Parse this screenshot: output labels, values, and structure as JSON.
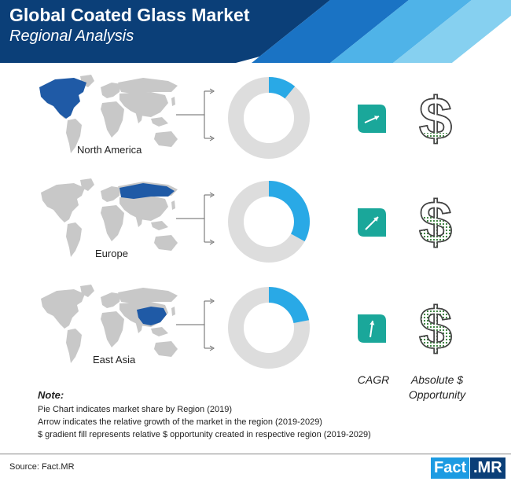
{
  "header": {
    "title": "Global Coated Glass Market",
    "subtitle": "Regional Analysis"
  },
  "colors": {
    "header_dark": "#0b3f78",
    "header_mid": "#1a73c4",
    "header_light": "#4fb3e8",
    "header_pale": "#86d0f0",
    "highlight_region": "#1f5aa6",
    "map_gray": "#c8c8c8",
    "donut_track": "#dddddd",
    "donut_share": "#29a9e6",
    "cagr_tile": "#1aa79a",
    "dollar_fill": "#2f7a32"
  },
  "chart_data": {
    "type": "pie",
    "regions": [
      {
        "name": "North America",
        "market_share_fraction": 0.11,
        "growth_arrow": "low",
        "dollar_fill_fraction": 0.25,
        "icons": [
          "world-map-icon",
          "arrow-up-right-icon",
          "dollar-icon"
        ]
      },
      {
        "name": "Europe",
        "market_share_fraction": 0.33,
        "growth_arrow": "medium",
        "dollar_fill_fraction": 0.6,
        "icons": [
          "world-map-icon",
          "arrow-up-right-icon",
          "dollar-icon"
        ]
      },
      {
        "name": "East Asia",
        "market_share_fraction": 0.22,
        "growth_arrow": "high",
        "dollar_fill_fraction": 0.9,
        "icons": [
          "world-map-icon",
          "arrow-up-icon",
          "dollar-icon"
        ]
      }
    ],
    "legend": {
      "cagr": "CAGR",
      "opportunity_line1": "Absolute $",
      "opportunity_line2": "Opportunity"
    }
  },
  "note": {
    "title": "Note:",
    "lines": [
      "Pie Chart indicates market share by Region (2019)",
      "Arrow indicates the relative growth of the market in the region (2019-2029)",
      "$ gradient fill represents relative $ opportunity created in respective region (2019-2029)"
    ]
  },
  "footer": {
    "source": "Source: Fact.MR",
    "logo_left": "Fact",
    "logo_right": ".MR"
  }
}
